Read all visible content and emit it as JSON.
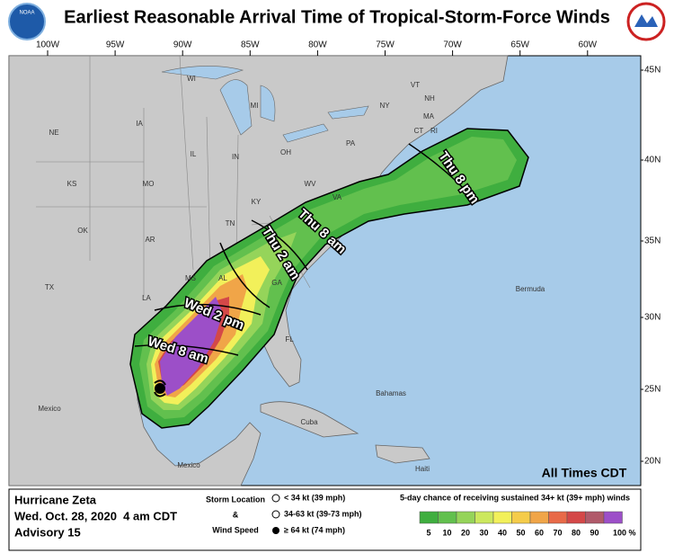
{
  "header": {
    "title": "Earliest Reasonable Arrival Time of Tropical-Storm-Force Winds",
    "logo_left": "NOAA"
  },
  "map": {
    "longitude_labels": [
      "100W",
      "95W",
      "90W",
      "85W",
      "80W",
      "75W",
      "70W",
      "65W",
      "60W"
    ],
    "latitude_labels": [
      "45N",
      "40N",
      "35N",
      "30N",
      "25N",
      "20N"
    ],
    "place_labels": [
      "WI",
      "MI",
      "NY",
      "VT",
      "NH",
      "MA",
      "CT",
      "RI",
      "PA",
      "NE",
      "IA",
      "IL",
      "IN",
      "OH",
      "KS",
      "MO",
      "KY",
      "WV",
      "VA",
      "OK",
      "AR",
      "TN",
      "TX",
      "LA",
      "MS",
      "AL",
      "GA",
      "FL",
      "Mexico",
      "Mexico",
      "Bermuda",
      "Bahamas",
      "Cuba",
      "Haiti"
    ],
    "time_labels": [
      "Thu 8 pm",
      "Thu 8 am",
      "Thu 2 am",
      "Wed 2 pm",
      "Wed 8 am"
    ],
    "note": "All Times CDT"
  },
  "footer": {
    "storm_name": "Hurricane Zeta",
    "date": "Wed. Oct. 28, 2020  4 am CDT",
    "advisory": "Advisory 15",
    "key_title_1": "Storm Location",
    "key_amp": "&",
    "key_title_2": "Wind Speed",
    "key_items": [
      "< 34 kt (39 mph)",
      "34-63 kt (39-73 mph)",
      "≥ 64 kt (74 mph)"
    ],
    "scale_title": "5-day chance of receiving sustained 34+ kt (39+ mph) winds",
    "scale": [
      {
        "label": "5",
        "color": "#3fae3f"
      },
      {
        "label": "10",
        "color": "#62c04e"
      },
      {
        "label": "20",
        "color": "#95d45a"
      },
      {
        "label": "30",
        "color": "#cce85e"
      },
      {
        "label": "40",
        "color": "#f2f05a"
      },
      {
        "label": "50",
        "color": "#f5cc4a"
      },
      {
        "label": "60",
        "color": "#f0a548"
      },
      {
        "label": "70",
        "color": "#e86a48"
      },
      {
        "label": "80",
        "color": "#d44848"
      },
      {
        "label": "90",
        "color": "#b05a6a"
      },
      {
        "label": "100 %",
        "color": "#9c4fc8"
      }
    ]
  }
}
